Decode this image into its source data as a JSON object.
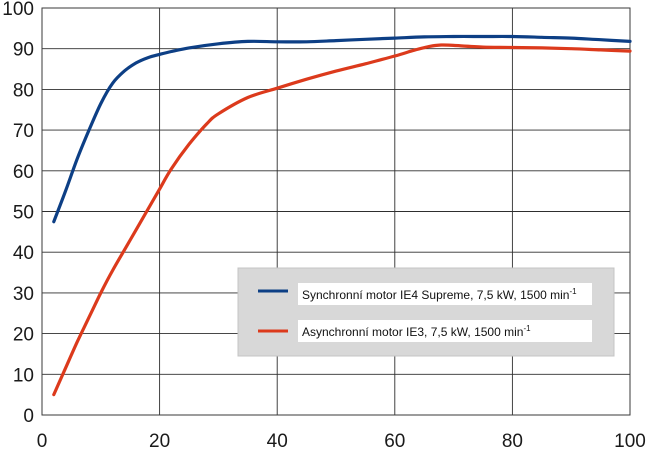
{
  "chart_data": {
    "type": "line",
    "xlim": [
      0,
      100
    ],
    "ylim": [
      0,
      100
    ],
    "x_ticks": [
      "0",
      "20",
      "40",
      "60",
      "80",
      "100"
    ],
    "y_ticks": [
      "0",
      "10",
      "20",
      "30",
      "40",
      "50",
      "60",
      "70",
      "80",
      "90",
      "100"
    ],
    "grid": true,
    "legend_position": "lower-right",
    "series": [
      {
        "label_main": "Synchronní motor IE4 Supreme, 7,5 kW, 1500 min",
        "label_sup": "-1",
        "color": "#0d3f85",
        "points": [
          [
            2,
            47.5
          ],
          [
            4,
            55
          ],
          [
            6,
            63
          ],
          [
            8,
            70
          ],
          [
            10,
            76.5
          ],
          [
            12,
            81.5
          ],
          [
            14,
            84.5
          ],
          [
            16,
            86.5
          ],
          [
            18,
            87.8
          ],
          [
            20,
            88.6
          ],
          [
            22,
            89.3
          ],
          [
            25,
            90.2
          ],
          [
            30,
            91.2
          ],
          [
            35,
            91.8
          ],
          [
            40,
            91.7
          ],
          [
            45,
            91.7
          ],
          [
            50,
            92
          ],
          [
            55,
            92.3
          ],
          [
            60,
            92.6
          ],
          [
            65,
            92.9
          ],
          [
            70,
            93.0
          ],
          [
            75,
            93.0
          ],
          [
            80,
            93.0
          ],
          [
            85,
            92.8
          ],
          [
            90,
            92.6
          ],
          [
            95,
            92.2
          ],
          [
            100,
            91.8
          ]
        ]
      },
      {
        "label_main": "Asynchronní motor IE3, 7,5 kW, 1500 min",
        "label_sup": "-1",
        "color": "#dc3a1c",
        "points": [
          [
            2,
            5
          ],
          [
            4,
            11.5
          ],
          [
            6,
            18
          ],
          [
            8,
            24
          ],
          [
            10,
            30
          ],
          [
            12,
            35.5
          ],
          [
            14,
            40.5
          ],
          [
            16,
            45.5
          ],
          [
            18,
            50.5
          ],
          [
            20,
            55.5
          ],
          [
            22,
            60.5
          ],
          [
            25,
            66.5
          ],
          [
            28,
            71.5
          ],
          [
            30,
            74
          ],
          [
            35,
            78
          ],
          [
            40,
            80.3
          ],
          [
            45,
            82.5
          ],
          [
            50,
            84.5
          ],
          [
            55,
            86.3
          ],
          [
            60,
            88.2
          ],
          [
            63,
            89.5
          ],
          [
            66,
            90.6
          ],
          [
            68,
            90.9
          ],
          [
            70,
            90.8
          ],
          [
            75,
            90.4
          ],
          [
            80,
            90.3
          ],
          [
            85,
            90.2
          ],
          [
            90,
            90.0
          ],
          [
            95,
            89.7
          ],
          [
            100,
            89.4
          ]
        ]
      }
    ]
  }
}
